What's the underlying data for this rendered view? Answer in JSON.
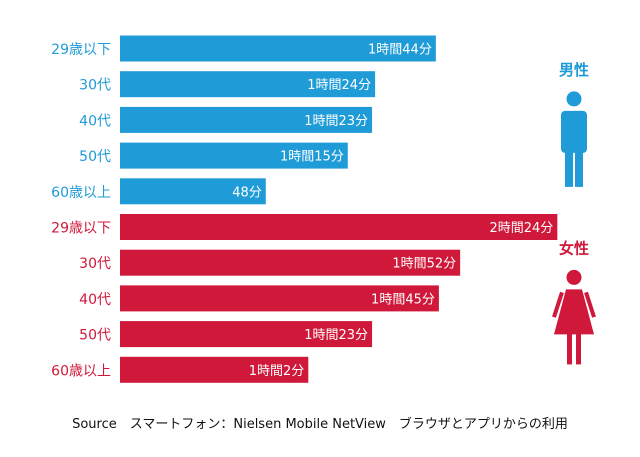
{
  "chart_data": {
    "type": "bar",
    "orientation": "horizontal",
    "unit": "minutes",
    "series": [
      {
        "name": "男性",
        "color": "#1f9bd7",
        "icon": "male-figure-icon",
        "categories": [
          "29歳以下",
          "30代",
          "40代",
          "50代",
          "60歳以上"
        ],
        "values": [
          104,
          84,
          83,
          75,
          48
        ],
        "labels": [
          "1時間44分",
          "1時間24分",
          "1時間23分",
          "1時間15分",
          "48分"
        ]
      },
      {
        "name": "女性",
        "color": "#d0183a",
        "icon": "female-figure-icon",
        "categories": [
          "29歳以下",
          "30代",
          "40代",
          "50代",
          "60歳以上"
        ],
        "values": [
          144,
          112,
          105,
          83,
          62
        ],
        "labels": [
          "2時間24分",
          "1時間52分",
          "1時間45分",
          "1時間23分",
          "1時間2分"
        ]
      }
    ]
  },
  "source": "Source　スマートフォン：Nielsen Mobile NetView　ブラウザとアプリからの利用"
}
